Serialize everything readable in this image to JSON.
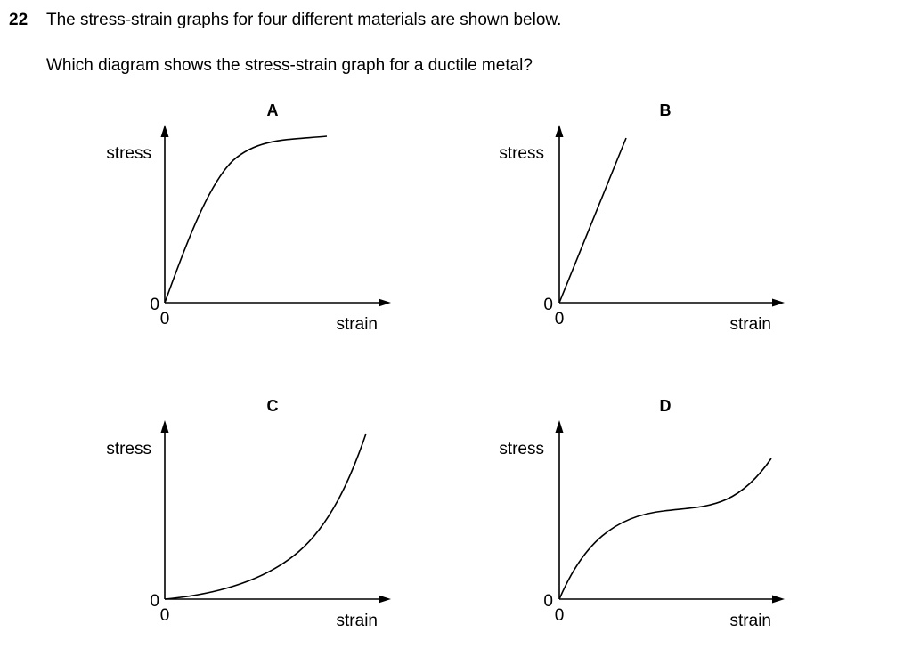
{
  "question": {
    "number": "22",
    "text": "The stress-strain graphs for four different materials are shown below.",
    "prompt": "Which diagram shows the stress-strain graph for a ductile metal?"
  },
  "graphs": [
    {
      "letter": "A",
      "y_label": "stress",
      "x_label": "strain",
      "origin_y": "0",
      "origin_x": "0",
      "shape": "rises-steeply-then-levels-off"
    },
    {
      "letter": "B",
      "y_label": "stress",
      "x_label": "strain",
      "origin_y": "0",
      "origin_x": "0",
      "shape": "straight-line-through-origin"
    },
    {
      "letter": "C",
      "y_label": "stress",
      "x_label": "strain",
      "origin_y": "0",
      "origin_x": "0",
      "shape": "increasing-gradient-curve"
    },
    {
      "letter": "D",
      "y_label": "stress",
      "x_label": "strain",
      "origin_y": "0",
      "origin_x": "0",
      "shape": "rise-plateau-rise"
    }
  ]
}
